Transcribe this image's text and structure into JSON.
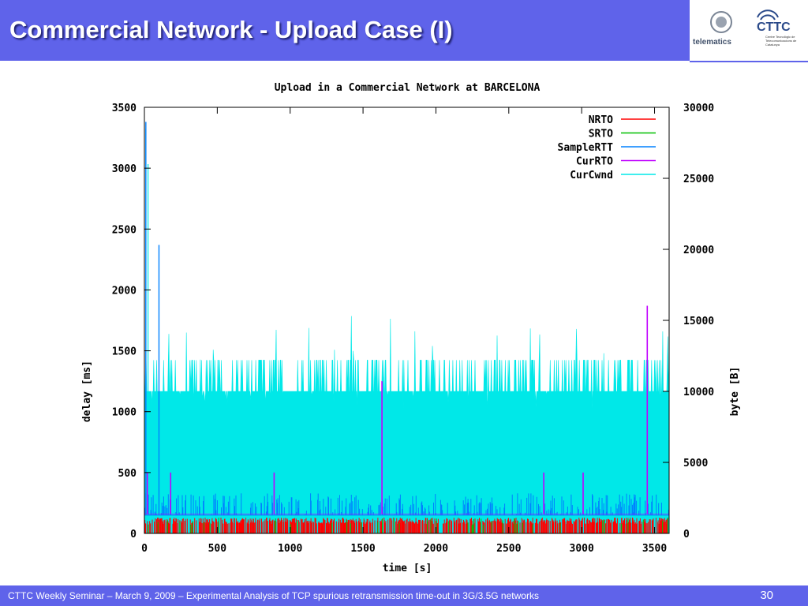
{
  "slide": {
    "title": "Commercial Network - Upload Case (I)",
    "footer": "CTTC Weekly Seminar – March 9, 2009 – Experimental Analysis of TCP spurious retransmission time-out in 3G/3.5G networks",
    "page_number": "30",
    "logos": {
      "telematics": "telematics",
      "cttc": "CTTC",
      "cttc_subtitle": "Centre Tecnològic de Telecomunicacions de Catalunya"
    },
    "colors": {
      "band": "#5f63ea",
      "title_text": "#ffffff"
    }
  },
  "chart_data": {
    "type": "line",
    "title": "Upload in a Commercial Network at BARCELONA",
    "xlabel": "time [s]",
    "ylabel": "delay [ms]",
    "y2label": "byte [B]",
    "xlim": [
      0,
      3600
    ],
    "ylim": [
      0,
      3500
    ],
    "y2lim": [
      0,
      30000
    ],
    "xticks": [
      0,
      500,
      1000,
      1500,
      2000,
      2500,
      3000,
      3500
    ],
    "yticks": [
      0,
      500,
      1000,
      1500,
      2000,
      2500,
      3000,
      3500
    ],
    "y2ticks": [
      0,
      5000,
      10000,
      15000,
      20000,
      25000,
      30000
    ],
    "grid": false,
    "legend_position": "top-right",
    "series": [
      {
        "name": "NRTO",
        "color": "#ff0000",
        "axis": "y",
        "baseline": 0,
        "typical_max": 130
      },
      {
        "name": "SRTO",
        "color": "#00c000",
        "axis": "y",
        "baseline": 0,
        "typical_max": 130
      },
      {
        "name": "SampleRTT",
        "color": "#0080ff",
        "axis": "y",
        "baseline": 150,
        "typical_max": 330,
        "peaks": [
          {
            "x": 10,
            "y": 3380
          },
          {
            "x": 100,
            "y": 2370
          }
        ]
      },
      {
        "name": "CurRTO",
        "color": "#c000ff",
        "axis": "y",
        "baseline": 160,
        "peaks": [
          {
            "x": 20,
            "y": 500
          },
          {
            "x": 180,
            "y": 500
          },
          {
            "x": 890,
            "y": 500
          },
          {
            "x": 1630,
            "y": 1250
          },
          {
            "x": 2740,
            "y": 500
          },
          {
            "x": 3010,
            "y": 500
          },
          {
            "x": 3450,
            "y": 1870
          }
        ]
      },
      {
        "name": "CurCwnd",
        "color": "#00e8e8",
        "axis": "y2",
        "base": 10000,
        "upper": 12200,
        "max": 15500
      }
    ]
  }
}
